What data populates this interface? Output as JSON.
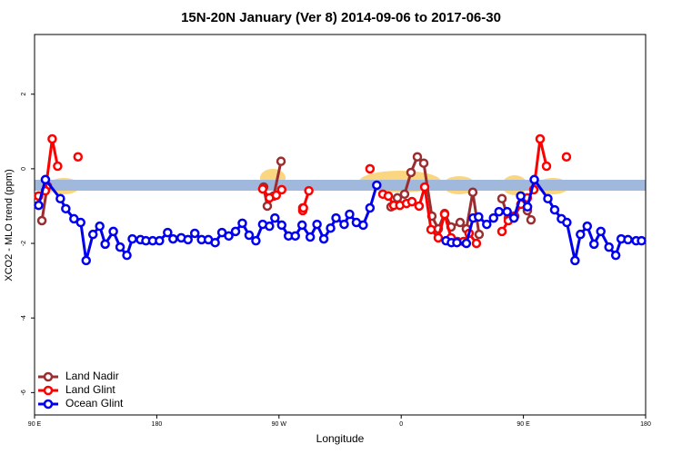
{
  "chart_data": {
    "type": "line",
    "title": "15N-20N January (Ver 8)   2014-09-06 to 2017-06-30",
    "xlabel": "Longitude",
    "ylabel": "XCO2 - MLO trend (ppm)",
    "xlim": [
      90,
      540
    ],
    "ylim": [
      -6.6,
      3.6
    ],
    "xticks": [
      {
        "value": 90,
        "label": "90 E"
      },
      180,
      {
        "value": 270,
        "label": "90 W"
      },
      {
        "value": 360,
        "label": "0"
      },
      {
        "value": 450,
        "label": "90 E"
      },
      {
        "value": 540,
        "label": "180"
      }
    ],
    "yticks": [
      -6,
      -4,
      -2,
      0,
      2
    ],
    "legend": "bottom-left",
    "series": [
      {
        "name": "Land Nadir",
        "color": "#9b2d30",
        "x": [
          95.4,
          99.4,
          null,
          258.7,
          261.4,
          266.1,
          271.5,
          null,
          287.5,
          null,
          352.5,
          357.2,
          362.5,
          367.2,
          371.9,
          376.6,
          382.6,
          387.3,
          392,
          396.7,
          403.4,
          408,
          412.7,
          417.4,
          null,
          434.2,
          438.9,
          443.6,
          448.2,
          452.9,
          455.6
        ],
        "values": [
          -1.39,
          -0.46,
          null,
          -0.49,
          -1.0,
          -0.73,
          0.2,
          null,
          -1.05,
          null,
          -1.02,
          -0.78,
          -0.68,
          -0.1,
          0.32,
          0.15,
          -1.27,
          -1.61,
          -1.2,
          -1.56,
          -1.44,
          -1.61,
          -0.63,
          -1.76,
          null,
          -0.8,
          -1.32,
          -1.27,
          -0.95,
          -1.12,
          -1.37
        ]
      },
      {
        "name": "Land Glint",
        "color": "#ff0000",
        "x": [
          93,
          98,
          103,
          107,
          null,
          122,
          null,
          258,
          263,
          268,
          272,
          null,
          287.5,
          288,
          292,
          null,
          337,
          null,
          346.5,
          350.5,
          354.5,
          359,
          363.9,
          367.9,
          373.2,
          377.3,
          382,
          387.3,
          392,
          396.7,
          401.4,
          406,
          410,
          415.4,
          null,
          434.2,
          438.9,
          442.9,
          448.2,
          452.9,
          457.6,
          462.3,
          467,
          null,
          481.7
        ],
        "values": [
          -0.73,
          -0.59,
          0.8,
          0.07,
          null,
          0.32,
          null,
          -0.54,
          -0.78,
          -0.71,
          -0.56,
          null,
          -1.12,
          -1.05,
          -0.59,
          null,
          0,
          null,
          -0.68,
          -0.73,
          -0.98,
          -0.98,
          -0.93,
          -0.88,
          -1.0,
          -0.49,
          -1.63,
          -1.85,
          -1.22,
          -1.85,
          -1.95,
          -1.95,
          -1.73,
          -2.0,
          null,
          -1.68,
          -1.39,
          -1.27,
          -0.95,
          -0.78,
          -0.56,
          0.8,
          0.07,
          null,
          0.32
        ]
      },
      {
        "name": "Ocean Glint",
        "color": "#0000ee",
        "x": [
          93,
          98,
          109,
          113,
          119,
          124,
          128,
          133,
          138,
          142,
          148,
          153,
          158,
          162,
          168,
          172,
          177,
          182,
          188,
          192,
          198,
          203,
          208,
          213,
          218,
          223,
          228,
          233,
          238,
          243,
          248,
          253,
          258,
          263,
          267,
          272,
          277,
          282,
          287,
          293,
          298,
          303,
          308,
          312,
          318,
          322,
          327,
          332,
          337,
          342,
          null,
          393,
          397,
          401,
          408,
          413,
          417,
          423,
          428,
          432,
          438,
          443,
          448,
          453,
          458,
          468,
          473,
          478,
          482,
          488,
          492,
          497,
          502,
          507,
          513,
          518,
          522,
          527,
          533,
          537
        ],
        "values": [
          -0.98,
          -0.29,
          -0.8,
          -1.07,
          -1.34,
          -1.44,
          -2.46,
          -1.76,
          -1.54,
          -2.02,
          -1.68,
          -2.1,
          -2.32,
          -1.88,
          -1.9,
          -1.93,
          -1.93,
          -1.93,
          -1.71,
          -1.88,
          -1.85,
          -1.9,
          -1.73,
          -1.9,
          -1.9,
          -1.98,
          -1.71,
          -1.8,
          -1.68,
          -1.46,
          -1.78,
          -1.93,
          -1.49,
          -1.54,
          -1.32,
          -1.51,
          -1.8,
          -1.8,
          -1.51,
          -1.83,
          -1.49,
          -1.88,
          -1.59,
          -1.32,
          -1.49,
          -1.22,
          -1.44,
          -1.51,
          -1.05,
          -0.44,
          null,
          -1.93,
          -1.98,
          -1.98,
          -2.0,
          -1.32,
          -1.29,
          -1.49,
          -1.32,
          -1.15,
          -1.15,
          -1.32,
          -0.73,
          -1.02,
          -0.29,
          -0.8,
          -1.1,
          -1.34,
          -1.44,
          -2.46,
          -1.76,
          -1.54,
          -2.02,
          -1.68,
          -2.1,
          -2.32,
          -1.88,
          -1.9,
          -1.93,
          -1.93
        ]
      }
    ]
  }
}
